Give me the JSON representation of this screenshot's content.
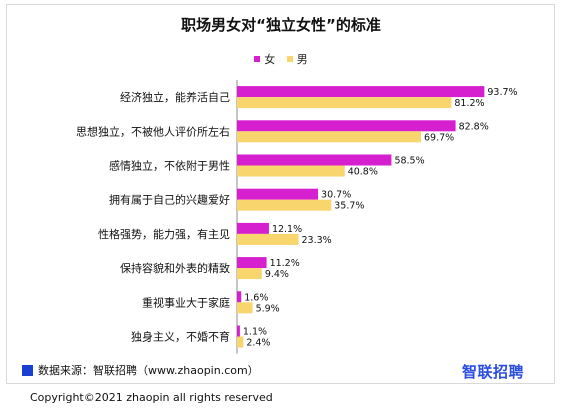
{
  "title": "职场男女对“独立女性”的标准",
  "legend": {
    "female": "女",
    "male": "男"
  },
  "colors": {
    "female": "#d61fce",
    "male": "#f9d56e"
  },
  "chart_data": {
    "type": "bar",
    "orientation": "horizontal",
    "categories": [
      "经济独立，能养活自己",
      "思想独立，不被他人评价所左右",
      "感情独立，不依附于男性",
      "拥有属于自己的兴趣爱好",
      "性格强势，能力强，有主见",
      "保持容貌和外表的精致",
      "重视事业大于家庭",
      "独身主义，不婚不育"
    ],
    "series": [
      {
        "name": "女",
        "values": [
          93.7,
          82.8,
          58.5,
          30.7,
          12.1,
          11.2,
          1.6,
          1.1
        ],
        "labels": [
          "93.7%",
          "82.8%",
          "58.5%",
          "30.7%",
          "12.1%",
          "11.2%",
          "1.6%",
          "1.1%"
        ]
      },
      {
        "name": "男",
        "values": [
          81.2,
          69.7,
          40.8,
          35.7,
          23.3,
          9.4,
          5.9,
          2.4
        ],
        "labels": [
          "81.2%",
          "69.7%",
          "40.8%",
          "35.7%",
          "23.3%",
          "9.4%",
          "5.9%",
          "2.4%"
        ]
      }
    ],
    "xlim": [
      0,
      100
    ],
    "legend_position": "top-center",
    "grid": false
  },
  "footer": {
    "source": "数据来源：智联招聘（www.zhaopin.com）",
    "logo": "智联招聘",
    "copyright": "Copyright©2021 zhaopin all rights reserved"
  }
}
